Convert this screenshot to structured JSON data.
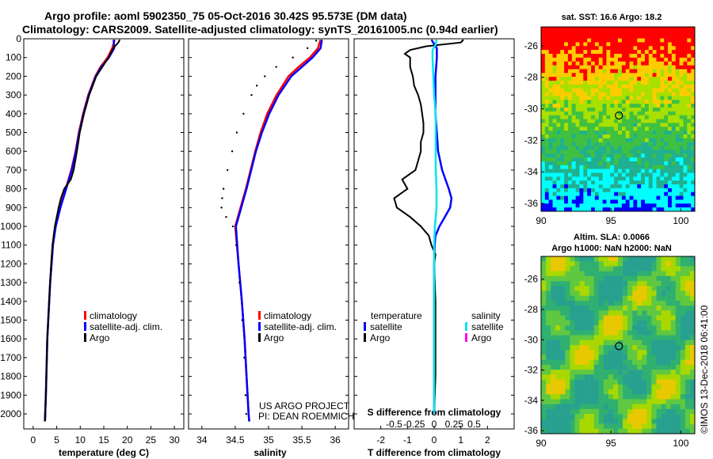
{
  "header": {
    "line1": "Argo profile: aoml 5902350_75 05-Oct-2016 30.42S 95.573E (DM data)",
    "line2": "Climatology: CARS2009. Satellite-adjusted climatology: synTS_20161005.nc (0.94d earlier)"
  },
  "colors": {
    "climatology": "#ff0000",
    "satellite": "#0000ff",
    "argo": "#000000",
    "sat_salinity": "#00e5ee",
    "argo_salinity": "#ff00ff"
  },
  "chart_data": [
    {
      "type": "line",
      "panel": "temperature",
      "xlabel": "temperature (deg C)",
      "xlim": [
        -2,
        32
      ],
      "xticks": [
        "0",
        "5",
        "10",
        "15",
        "20",
        "25",
        "30"
      ],
      "xtick_values": [
        0,
        5,
        10,
        15,
        20,
        25,
        30
      ],
      "ylim": [
        0,
        2080
      ],
      "yticks": [
        "0",
        "100",
        "200",
        "300",
        "400",
        "500",
        "600",
        "700",
        "800",
        "900",
        "1000",
        "1100",
        "1200",
        "1300",
        "1400",
        "1500",
        "1600",
        "1700",
        "1800",
        "1900",
        "2000"
      ],
      "ytick_values": [
        0,
        100,
        200,
        300,
        400,
        500,
        600,
        700,
        800,
        900,
        1000,
        1100,
        1200,
        1300,
        1400,
        1500,
        1600,
        1700,
        1800,
        1900,
        2000
      ],
      "legend": [
        "climatology",
        "satellite-adj. clim.",
        "Argo"
      ],
      "series": [
        {
          "name": "climatology",
          "color": "#ff0000",
          "depth": [
            5,
            50,
            100,
            150,
            200,
            300,
            400,
            500,
            600,
            700,
            800,
            900,
            1000,
            1100,
            1200,
            1300,
            1400,
            1500,
            1600,
            1700,
            1800,
            1900,
            2000,
            2040
          ],
          "values": [
            17.3,
            16.8,
            15.8,
            14.3,
            13.2,
            11.7,
            10.6,
            9.7,
            9.0,
            8.1,
            6.9,
            5.7,
            4.7,
            4.2,
            3.9,
            3.6,
            3.4,
            3.2,
            3.0,
            2.9,
            2.8,
            2.7,
            2.55,
            2.5
          ]
        },
        {
          "name": "satellite-adj. clim.",
          "color": "#0000ff",
          "depth": [
            5,
            50,
            100,
            150,
            200,
            300,
            400,
            500,
            600,
            700,
            800,
            900,
            1000,
            1100,
            1200,
            1300,
            1400,
            1500,
            1600,
            1700,
            1800,
            1900,
            2000,
            2040
          ],
          "values": [
            17.1,
            17.2,
            16.1,
            14.5,
            13.3,
            11.8,
            10.7,
            9.8,
            9.1,
            8.2,
            7.0,
            5.8,
            4.8,
            4.2,
            3.9,
            3.6,
            3.4,
            3.2,
            3.0,
            2.9,
            2.8,
            2.7,
            2.55,
            2.5
          ]
        },
        {
          "name": "Argo",
          "color": "#000000",
          "depth": [
            5,
            20,
            50,
            100,
            150,
            200,
            300,
            400,
            500,
            600,
            700,
            750,
            800,
            850,
            900,
            950,
            1000,
            1100,
            1200,
            1300,
            1400,
            1500,
            1600,
            1700,
            1800,
            1900,
            2000,
            2040
          ],
          "values": [
            18.4,
            18.1,
            17.0,
            16.0,
            14.7,
            13.4,
            11.9,
            10.8,
            9.9,
            9.3,
            8.6,
            8.0,
            6.6,
            5.9,
            5.4,
            5.0,
            4.6,
            4.1,
            3.8,
            3.6,
            3.4,
            3.2,
            3.0,
            2.9,
            2.8,
            2.7,
            2.6,
            2.55
          ]
        }
      ]
    },
    {
      "type": "line",
      "panel": "salinity",
      "xlabel": "salinity",
      "xlim": [
        33.8,
        36.2
      ],
      "xticks": [
        "34",
        "34.5",
        "35",
        "35.5",
        "36"
      ],
      "xtick_values": [
        34,
        34.5,
        35,
        35.5,
        36
      ],
      "ylim": [
        0,
        2080
      ],
      "legend": [
        "climatology",
        "satellite-adj. clim.",
        "Argo"
      ],
      "watermark": [
        "US ARGO PROJECT",
        "PI: DEAN ROEMMICH"
      ],
      "series": [
        {
          "name": "climatology",
          "color": "#ff0000",
          "depth": [
            5,
            50,
            100,
            150,
            200,
            300,
            400,
            500,
            600,
            700,
            800,
            900,
            1000,
            1200,
            1400,
            1600,
            1800,
            2000,
            2040
          ],
          "values": [
            35.78,
            35.74,
            35.62,
            35.45,
            35.3,
            35.12,
            34.98,
            34.88,
            34.8,
            34.73,
            34.66,
            34.58,
            34.5,
            34.55,
            34.6,
            34.64,
            34.67,
            34.7,
            34.71
          ]
        },
        {
          "name": "satellite-adj. clim.",
          "color": "#0000ff",
          "depth": [
            5,
            50,
            100,
            150,
            200,
            300,
            400,
            500,
            600,
            700,
            800,
            900,
            1000,
            1200,
            1400,
            1600,
            1800,
            2000,
            2040
          ],
          "values": [
            35.8,
            35.78,
            35.66,
            35.5,
            35.34,
            35.15,
            35.01,
            34.9,
            34.81,
            34.74,
            34.67,
            34.59,
            34.51,
            34.55,
            34.6,
            34.64,
            34.67,
            34.7,
            34.71
          ]
        },
        {
          "name": "Argo",
          "color": "#000000",
          "depth": [
            10,
            50,
            100,
            150,
            200,
            250,
            300,
            400,
            500,
            600,
            700,
            800,
            850,
            900,
            950,
            1000,
            1100,
            1300,
            1500,
            1700,
            1900,
            2000
          ],
          "values": [
            35.75,
            35.62,
            35.4,
            35.15,
            34.98,
            34.86,
            34.78,
            34.66,
            34.56,
            34.49,
            34.42,
            34.36,
            34.34,
            34.33,
            34.4,
            34.5,
            34.55,
            34.6,
            34.64,
            34.67,
            34.69,
            34.7
          ]
        }
      ]
    },
    {
      "type": "line",
      "panel": "T difference",
      "xlabel": "T difference from climatology",
      "xlim": [
        -3,
        3
      ],
      "xticks": [
        "-2",
        "-1",
        "0",
        "1",
        "2"
      ],
      "xtick_values": [
        -2,
        -1,
        0,
        1,
        2
      ],
      "top_xlabel": "S difference from climatology",
      "top_xticks": [
        "-0.5",
        "-0.25",
        "0",
        "0.25",
        "0.5"
      ],
      "top_xtick_values": [
        -0.5,
        -0.25,
        0,
        0.25,
        0.5
      ],
      "legend_left_title": "temperature",
      "legend_left": [
        "satellite",
        "Argo"
      ],
      "legend_right_title": "salinity",
      "legend_right": [
        "satellite",
        "Argo"
      ],
      "series": [
        {
          "name": "temperature satellite",
          "color": "#0000ff",
          "depth": [
            5,
            50,
            100,
            200,
            300,
            400,
            500,
            600,
            700,
            800,
            850,
            900,
            950,
            1000,
            1050,
            1100,
            1200,
            1400,
            1600,
            1800,
            2000
          ],
          "values": [
            -0.1,
            0.1,
            0.1,
            0.05,
            0.05,
            0.05,
            0.1,
            0.15,
            0.3,
            0.55,
            0.65,
            0.6,
            0.4,
            0.2,
            0.05,
            0.02,
            0.0,
            0.0,
            0.0,
            0.0,
            0.0
          ]
        },
        {
          "name": "temperature Argo",
          "color": "#000000",
          "depth": [
            5,
            20,
            40,
            60,
            80,
            100,
            150,
            200,
            250,
            300,
            350,
            400,
            450,
            500,
            550,
            600,
            650,
            700,
            750,
            800,
            850,
            900,
            950,
            1000,
            1050,
            1100,
            1150,
            1200,
            1400,
            1600,
            1800,
            2000
          ],
          "values": [
            1.1,
            1.0,
            -0.3,
            -0.9,
            -1.1,
            -0.9,
            -0.9,
            -0.8,
            -0.75,
            -0.6,
            -0.5,
            -0.45,
            -0.4,
            -0.4,
            -0.5,
            -0.5,
            -0.6,
            -0.7,
            -1.2,
            -1.0,
            -1.5,
            -1.4,
            -0.9,
            -0.5,
            -0.2,
            -0.1,
            0.05,
            0.0,
            0.05,
            0.05,
            0.05,
            0.0
          ]
        },
        {
          "name": "salinity satellite",
          "color": "#00e5ee",
          "depth": [
            5,
            30,
            60,
            100,
            200,
            300,
            400,
            500,
            600,
            700,
            800,
            900,
            1000,
            1100,
            1200,
            1400,
            1600,
            1800,
            2000
          ],
          "values": [
            0.03,
            0.02,
            -0.02,
            -0.02,
            -0.01,
            0.0,
            0.02,
            0.02,
            0.02,
            0.02,
            0.03,
            0.03,
            0.01,
            0.0,
            0.0,
            0.0,
            0.0,
            0.0,
            0.0
          ]
        }
      ]
    }
  ],
  "map_sst": {
    "title": "sat. SST: 16.6 Argo: 18.2",
    "xticks": [
      "90",
      "95",
      "100"
    ],
    "yticks": [
      "-26",
      "-28",
      "-30",
      "-32",
      "-34",
      "-36"
    ],
    "xlim": [
      90,
      101
    ],
    "ylim": [
      -36.5,
      -24.8
    ],
    "marker": {
      "lon": 95.57,
      "lat": -30.42
    }
  },
  "map_sla": {
    "title_line1": "Altim. SLA: 0.0066",
    "title_line2": "Argo h1000: NaN h2000: NaN",
    "xticks": [
      "90",
      "95",
      "100"
    ],
    "yticks": [
      "-26",
      "-28",
      "-30",
      "-32",
      "-34",
      "-36"
    ],
    "xlim": [
      90,
      101
    ],
    "ylim": [
      -36.2,
      -24.5
    ],
    "marker": {
      "lon": 95.57,
      "lat": -30.42
    }
  },
  "footer": {
    "credit": "©IMOS 13-Dec-2018 06:41:00"
  }
}
